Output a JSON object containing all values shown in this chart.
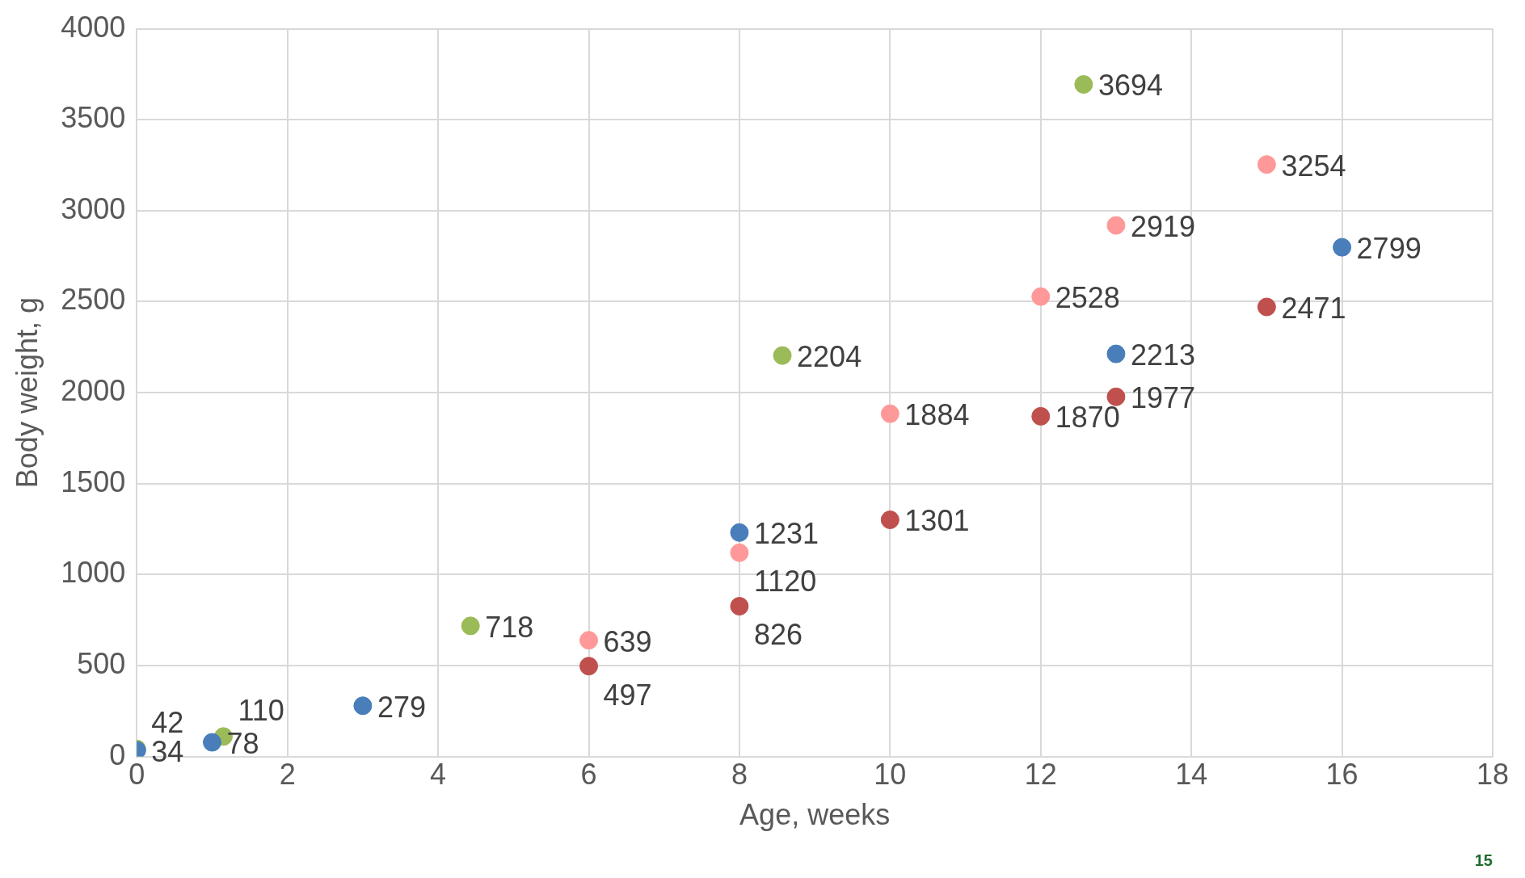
{
  "chart_data": {
    "type": "scatter",
    "xlabel": "Age, weeks",
    "ylabel": "Body weight, g",
    "xlim": [
      0,
      18
    ],
    "xticks": [
      0,
      2,
      4,
      6,
      8,
      10,
      12,
      14,
      16,
      18
    ],
    "ylim": [
      0,
      4000
    ],
    "yticks": [
      0,
      500,
      1000,
      1500,
      2000,
      2500,
      3000,
      3500,
      4000
    ],
    "grid": true,
    "legend": false,
    "marker": "circle",
    "data_labels": true,
    "annotations": [
      "15"
    ],
    "series": [
      {
        "color": "#4a7ebb",
        "x": [
          0,
          1,
          3,
          8,
          13,
          16
        ],
        "values": [
          34,
          78,
          279,
          1231,
          2213,
          2799
        ]
      },
      {
        "color": "#9bbb59",
        "x": [
          0,
          1.15,
          4.43,
          8.57,
          12.57
        ],
        "values": [
          42,
          110,
          718,
          2204,
          3694
        ]
      },
      {
        "color": "#ff9999",
        "x": [
          6,
          8,
          10,
          12,
          13,
          15
        ],
        "values": [
          639,
          1120,
          1884,
          2528,
          2919,
          3254
        ]
      },
      {
        "color": "#c0504d",
        "x": [
          6,
          8,
          10,
          12,
          13,
          15
        ],
        "values": [
          497,
          826,
          1301,
          1870,
          1977,
          2471
        ]
      }
    ]
  }
}
